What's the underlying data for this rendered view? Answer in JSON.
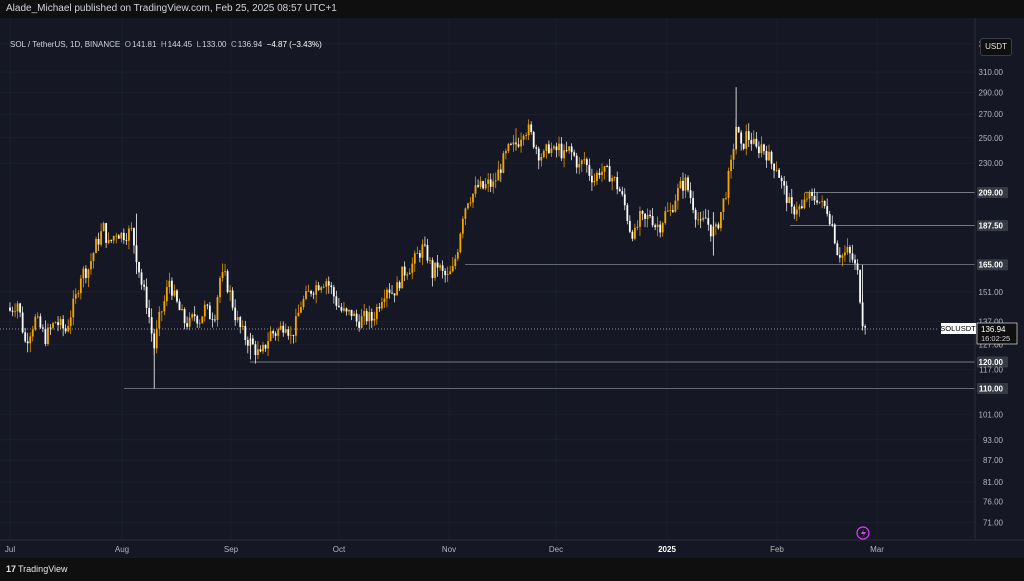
{
  "header": {
    "published_text": "Alade_Michael published on TradingView.com, Feb 25, 2025 08:57 UTC+1"
  },
  "legend": {
    "symbol": "SOL / TetherUS, 1D, BINANCE",
    "open_label": "O",
    "open": "141.81",
    "high_label": "H",
    "high": "144.45",
    "low_label": "L",
    "low": "133.00",
    "close_label": "C",
    "close": "136.94",
    "change": "−4.87 (−3.43%)"
  },
  "currency": "USDT",
  "price_axis": {
    "ticks": [
      "340.00",
      "310.00",
      "290.00",
      "270.00",
      "250.00",
      "230.00",
      "209.00",
      "187.50",
      "165.00",
      "151.00",
      "137.00",
      "127.00",
      "120.00",
      "117.00",
      "110.00",
      "101.00",
      "93.00",
      "87.00",
      "81.00",
      "76.00",
      "71.00"
    ],
    "highlighted": [
      "209.00",
      "187.50",
      "165.00",
      "120.00",
      "110.00"
    ]
  },
  "time_axis": {
    "labels": [
      "Jul",
      "Aug",
      "Sep",
      "Oct",
      "Nov",
      "Dec",
      "2025",
      "Feb",
      "Mar"
    ]
  },
  "last_price": {
    "symbol_label": "SOLUSDT",
    "price": "136.94",
    "countdown": "16:02:25"
  },
  "horizontal_levels": [
    209,
    187.5,
    165,
    120,
    110
  ],
  "colors": {
    "up": "#f7a600",
    "down": "#ffffff",
    "background": "#151824",
    "grid": "#1e2230",
    "level_line": "#9598a1",
    "alert_icon": "#e040fb"
  },
  "footer": {
    "brand": "TradingView",
    "logo_mark": "17"
  },
  "chart_data": {
    "type": "candlestick",
    "symbol": "SOL / TetherUS",
    "interval": "1D",
    "exchange": "BINANCE",
    "scale": "log",
    "ylim": [
      67,
      370
    ],
    "time_labels": [
      "Jul",
      "Aug",
      "Sep",
      "Oct",
      "Nov",
      "Dec",
      "2025",
      "Feb",
      "Mar"
    ],
    "key_levels": [
      209,
      187.5,
      165,
      120,
      110
    ],
    "last_close": 136.94,
    "close_path": [
      [
        0,
        142
      ],
      [
        3,
        146
      ],
      [
        6,
        128
      ],
      [
        10,
        138
      ],
      [
        14,
        130
      ],
      [
        18,
        137
      ],
      [
        22,
        133
      ],
      [
        26,
        148
      ],
      [
        28,
        160
      ],
      [
        31,
        163
      ],
      [
        34,
        176
      ],
      [
        37,
        186
      ],
      [
        39,
        176
      ],
      [
        42,
        184
      ],
      [
        44,
        182
      ],
      [
        46,
        183
      ],
      [
        48,
        184
      ],
      [
        50,
        170
      ],
      [
        52,
        155
      ],
      [
        54,
        146
      ],
      [
        56,
        132
      ],
      [
        57,
        126
      ],
      [
        59,
        138
      ],
      [
        61,
        146
      ],
      [
        63,
        157
      ],
      [
        65,
        148
      ],
      [
        67,
        142
      ],
      [
        69,
        137
      ],
      [
        71,
        136
      ],
      [
        73,
        140
      ],
      [
        75,
        138
      ],
      [
        77,
        143
      ],
      [
        79,
        140
      ],
      [
        81,
        141
      ],
      [
        83,
        158
      ],
      [
        85,
        158
      ],
      [
        87,
        150
      ],
      [
        89,
        140
      ],
      [
        91,
        134
      ],
      [
        93,
        130
      ],
      [
        95,
        128
      ],
      [
        97,
        125
      ],
      [
        99,
        122
      ],
      [
        101,
        127
      ],
      [
        103,
        132
      ],
      [
        105,
        132
      ],
      [
        107,
        134
      ],
      [
        109,
        137
      ],
      [
        111,
        130
      ],
      [
        113,
        136
      ],
      [
        115,
        145
      ],
      [
        117,
        148
      ],
      [
        119,
        152
      ],
      [
        121,
        154
      ],
      [
        123,
        156
      ],
      [
        125,
        157
      ],
      [
        127,
        152
      ],
      [
        129,
        146
      ],
      [
        131,
        142
      ],
      [
        133,
        140
      ],
      [
        135,
        141
      ],
      [
        137,
        137
      ],
      [
        139,
        138
      ],
      [
        141,
        139
      ],
      [
        143,
        138
      ],
      [
        145,
        143
      ],
      [
        147,
        149
      ],
      [
        149,
        154
      ],
      [
        151,
        151
      ],
      [
        153,
        153
      ],
      [
        155,
        160
      ],
      [
        157,
        163
      ],
      [
        159,
        165
      ],
      [
        161,
        170
      ],
      [
        163,
        174
      ],
      [
        165,
        170
      ],
      [
        167,
        160
      ],
      [
        169,
        165
      ],
      [
        171,
        160
      ],
      [
        173,
        158
      ],
      [
        175,
        162
      ],
      [
        177,
        175
      ],
      [
        179,
        195
      ],
      [
        181,
        205
      ],
      [
        183,
        208
      ],
      [
        185,
        213
      ],
      [
        187,
        212
      ],
      [
        189,
        215
      ],
      [
        191,
        214
      ],
      [
        193,
        223
      ],
      [
        195,
        232
      ],
      [
        197,
        240
      ],
      [
        199,
        242
      ],
      [
        201,
        248
      ],
      [
        203,
        258
      ],
      [
        205,
        256
      ],
      [
        207,
        247
      ],
      [
        209,
        238
      ],
      [
        211,
        235
      ],
      [
        213,
        243
      ],
      [
        215,
        238
      ],
      [
        217,
        242
      ],
      [
        219,
        235
      ],
      [
        221,
        240
      ],
      [
        223,
        235
      ],
      [
        225,
        227
      ],
      [
        227,
        233
      ],
      [
        229,
        223
      ],
      [
        231,
        218
      ],
      [
        233,
        225
      ],
      [
        235,
        223
      ],
      [
        237,
        222
      ],
      [
        239,
        217
      ],
      [
        241,
        210
      ],
      [
        243,
        200
      ],
      [
        245,
        186
      ],
      [
        247,
        182
      ],
      [
        249,
        192
      ],
      [
        251,
        190
      ],
      [
        253,
        195
      ],
      [
        255,
        188
      ],
      [
        257,
        188
      ],
      [
        259,
        195
      ],
      [
        261,
        196
      ],
      [
        263,
        206
      ],
      [
        265,
        213
      ],
      [
        267,
        216
      ],
      [
        269,
        206
      ],
      [
        271,
        196
      ],
      [
        273,
        187
      ],
      [
        275,
        192
      ],
      [
        277,
        185
      ],
      [
        279,
        184
      ],
      [
        281,
        196
      ],
      [
        283,
        210
      ],
      [
        285,
        228
      ],
      [
        287,
        260
      ],
      [
        289,
        240
      ],
      [
        291,
        252
      ],
      [
        293,
        248
      ],
      [
        295,
        240
      ],
      [
        297,
        244
      ],
      [
        299,
        238
      ],
      [
        301,
        230
      ],
      [
        303,
        228
      ],
      [
        305,
        215
      ],
      [
        307,
        206
      ],
      [
        309,
        196
      ],
      [
        311,
        200
      ],
      [
        313,
        197
      ],
      [
        315,
        206
      ],
      [
        317,
        204
      ],
      [
        319,
        206
      ],
      [
        321,
        200
      ],
      [
        323,
        198
      ],
      [
        325,
        188
      ],
      [
        327,
        173
      ],
      [
        329,
        170
      ],
      [
        331,
        172
      ],
      [
        333,
        168
      ],
      [
        335,
        160
      ],
      [
        337,
        138
      ],
      [
        338,
        137
      ]
    ]
  }
}
